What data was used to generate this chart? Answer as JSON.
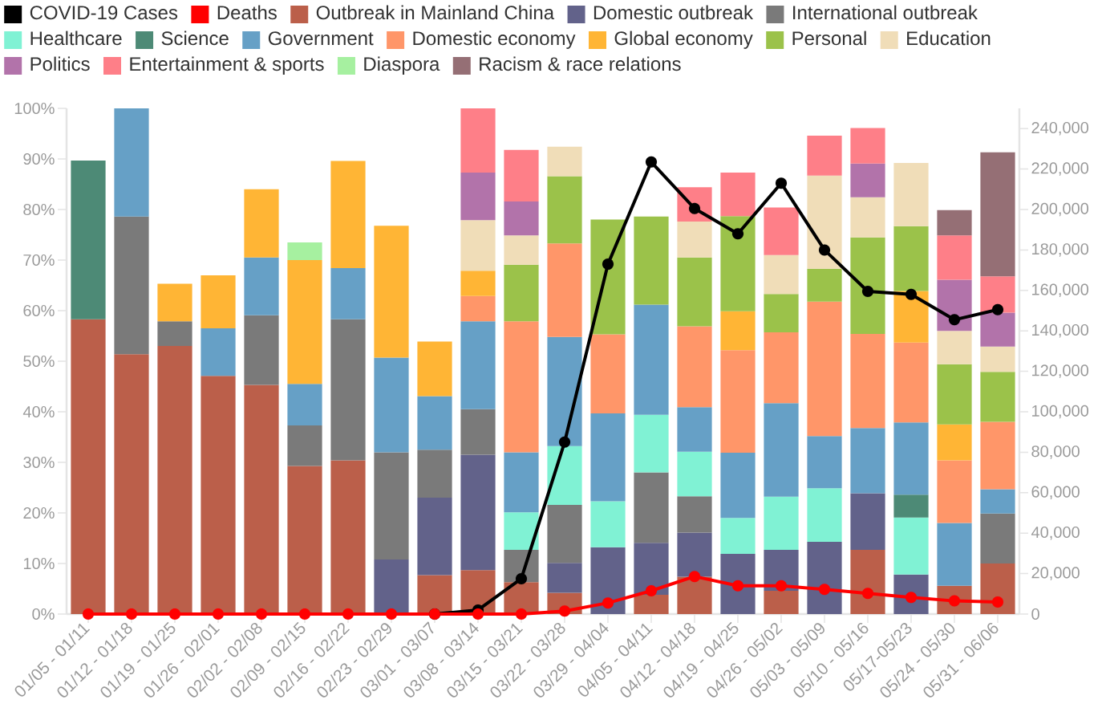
{
  "chart_data": {
    "type": "bar",
    "stacked": true,
    "legend": "top",
    "categories": [
      "01/05 - 01/11",
      "01/12 - 01/18",
      "01/19 - 01/25",
      "01/26 - 02/01",
      "02/02 - 02/08",
      "02/09 - 02/15",
      "02/16 - 02/22",
      "02/23 - 02/29",
      "03/01 - 03/07",
      "03/08 - 03/14",
      "03/15 - 03/21",
      "03/22 - 03/28",
      "03/29 - 04/04",
      "04/05 - 04/11",
      "04/12 - 04/18",
      "04/19 - 04/25",
      "04/26 - 05/02",
      "05/03 - 05/09",
      "05/10 - 05/16",
      "05/17-05/23",
      "05/24 - 05/30",
      "05/31 - 06/06"
    ],
    "ylim": [
      0,
      100
    ],
    "yticks": [
      {
        "value": 0,
        "label": "0%"
      },
      {
        "value": 10,
        "label": "10%"
      },
      {
        "value": 20,
        "label": "20%"
      },
      {
        "value": 30,
        "label": "30%"
      },
      {
        "value": 40,
        "label": "40%"
      },
      {
        "value": 50,
        "label": "50%"
      },
      {
        "value": 60,
        "label": "60%"
      },
      {
        "value": 70,
        "label": "70%"
      },
      {
        "value": 80,
        "label": "80%"
      },
      {
        "value": 90,
        "label": "90%"
      },
      {
        "value": 100,
        "label": "100%"
      }
    ],
    "y2lim": [
      0,
      250000
    ],
    "y2ticks": [
      0,
      {
        "value": 20000,
        "label": "20,000"
      },
      {
        "value": 40000,
        "label": "40,000"
      },
      {
        "value": 60000,
        "label": "60,000"
      },
      {
        "value": 80000,
        "label": "80,000"
      },
      {
        "value": 100000,
        "label": "100,000"
      },
      {
        "value": 120000,
        "label": "120,000"
      },
      {
        "value": 140000,
        "label": "140,000"
      },
      {
        "value": 160000,
        "label": "160,000"
      },
      {
        "value": 180000,
        "label": "180,000"
      },
      {
        "value": 200000,
        "label": "200,000"
      },
      {
        "value": 220000,
        "label": "220,000"
      },
      {
        "value": 240000,
        "label": "240,000"
      }
    ],
    "series": [
      {
        "name": "COVID-19 Cases",
        "type": "line",
        "axis": "y2",
        "marker": "circle",
        "color": "#000000",
        "values": [
          null,
          null,
          null,
          null,
          null,
          null,
          null,
          null,
          0,
          2000,
          17500,
          85000,
          173000,
          223500,
          200500,
          188000,
          213000,
          180000,
          159500,
          158000,
          145500,
          150500
        ]
      },
      {
        "name": "Deaths",
        "type": "line",
        "axis": "y2",
        "marker": "circle",
        "color": "#ff0000",
        "values": [
          0,
          0,
          0,
          0,
          0,
          0,
          0,
          0,
          0,
          0,
          0,
          1500,
          5500,
          11500,
          18600,
          14000,
          14000,
          12200,
          10200,
          8200,
          6500,
          6000
        ]
      },
      {
        "name": "Outbreak in Mainland China",
        "color": "#bb5f4a",
        "values": [
          58.3,
          51.4,
          53.0,
          47.1,
          45.3,
          29.3,
          30.4,
          null,
          7.7,
          8.7,
          6.3,
          4.2,
          null,
          3.8,
          7.4,
          null,
          4.6,
          null,
          12.7,
          null,
          5.6,
          10.0
        ]
      },
      {
        "name": "Domestic outbreak",
        "color": "#62628a",
        "values": [
          null,
          null,
          null,
          null,
          null,
          null,
          null,
          10.8,
          15.3,
          22.8,
          null,
          5.9,
          13.2,
          10.3,
          8.7,
          11.9,
          8.1,
          14.3,
          11.2,
          7.8,
          null,
          null
        ]
      },
      {
        "name": "International outbreak",
        "color": "#7a7a7a",
        "values": [
          null,
          27.2,
          4.9,
          null,
          13.8,
          8.0,
          27.9,
          21.2,
          9.5,
          9.0,
          6.4,
          11.5,
          null,
          13.9,
          7.2,
          null,
          null,
          null,
          null,
          null,
          null,
          9.9
        ]
      },
      {
        "name": "Healthcare",
        "color": "#80f2d4",
        "values": [
          null,
          null,
          null,
          null,
          null,
          null,
          null,
          null,
          null,
          null,
          7.4,
          11.6,
          9.1,
          11.4,
          8.8,
          7.1,
          10.5,
          10.6,
          null,
          11.3,
          null,
          null
        ]
      },
      {
        "name": "Science",
        "color": "#4d8a76",
        "values": [
          31.4,
          null,
          null,
          null,
          null,
          null,
          null,
          null,
          null,
          null,
          null,
          null,
          null,
          null,
          null,
          null,
          null,
          null,
          null,
          4.5,
          null,
          null
        ]
      },
      {
        "name": "Government",
        "color": "#66a0c6",
        "values": [
          null,
          21.4,
          null,
          9.4,
          11.4,
          8.2,
          10.1,
          18.7,
          10.6,
          17.4,
          11.9,
          21.6,
          17.4,
          21.8,
          8.8,
          12.9,
          18.5,
          10.3,
          12.9,
          14.3,
          12.4,
          4.8
        ]
      },
      {
        "name": "Domestic economy",
        "color": "#ff9669",
        "values": [
          null,
          null,
          null,
          null,
          null,
          null,
          null,
          null,
          null,
          5.0,
          25.9,
          18.5,
          15.6,
          null,
          16.0,
          20.3,
          14.0,
          26.6,
          18.6,
          15.8,
          12.4,
          13.3
        ]
      },
      {
        "name": "Global economy",
        "color": "#ffb535",
        "values": [
          null,
          null,
          7.4,
          10.5,
          13.5,
          24.5,
          21.2,
          26.1,
          10.8,
          5.0,
          null,
          null,
          null,
          null,
          null,
          7.7,
          null,
          null,
          null,
          10.2,
          7.1,
          null
        ]
      },
      {
        "name": "Personal",
        "color": "#9bc24a",
        "values": [
          null,
          null,
          null,
          null,
          null,
          null,
          null,
          null,
          null,
          null,
          11.2,
          13.3,
          22.7,
          17.4,
          13.6,
          18.8,
          7.6,
          6.5,
          19.1,
          12.8,
          11.9,
          9.9
        ]
      },
      {
        "name": "Education",
        "color": "#f0ddb8",
        "values": [
          null,
          null,
          null,
          null,
          null,
          null,
          null,
          null,
          null,
          10.0,
          5.8,
          5.8,
          null,
          null,
          7.1,
          null,
          7.7,
          18.4,
          7.9,
          12.5,
          6.6,
          5.0
        ]
      },
      {
        "name": "Politics",
        "color": "#b273aa",
        "values": [
          null,
          null,
          null,
          null,
          null,
          null,
          null,
          null,
          null,
          9.4,
          6.7,
          null,
          null,
          null,
          null,
          null,
          null,
          null,
          6.7,
          null,
          10.1,
          6.7
        ]
      },
      {
        "name": "Entertainment & sports",
        "color": "#fe7f88",
        "values": [
          null,
          null,
          null,
          null,
          null,
          null,
          null,
          null,
          null,
          12.7,
          10.2,
          null,
          null,
          null,
          6.8,
          8.6,
          9.4,
          7.9,
          7.0,
          null,
          8.8,
          7.2
        ]
      },
      {
        "name": "Diaspora",
        "color": "#a6f0a0",
        "values": [
          null,
          null,
          null,
          null,
          null,
          3.5,
          null,
          null,
          null,
          null,
          null,
          null,
          null,
          null,
          null,
          null,
          null,
          null,
          null,
          null,
          null,
          null
        ]
      },
      {
        "name": "Racism & race relations",
        "color": "#956f75",
        "values": [
          null,
          null,
          null,
          null,
          null,
          null,
          null,
          null,
          null,
          null,
          null,
          null,
          null,
          null,
          null,
          null,
          null,
          null,
          null,
          null,
          5.0,
          24.5
        ]
      }
    ]
  }
}
